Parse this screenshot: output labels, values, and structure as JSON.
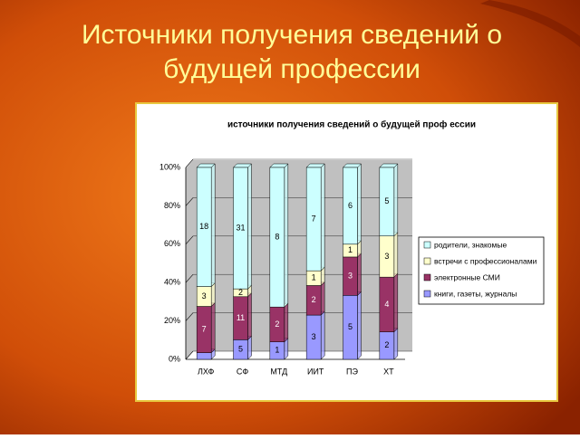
{
  "slide_title": "Источники получения сведений о будущей профессии",
  "chart_data": {
    "type": "stacked_percent_bar",
    "title": "источники получения сведений о будущей проф ессии",
    "categories": [
      "ЛХФ",
      "СФ",
      "МТД",
      "ИИТ",
      "ПЭ",
      "ХТ"
    ],
    "series": [
      {
        "name": "книги, газеты, журналы",
        "color": "#9999ff",
        "values": [
          1,
          5,
          1,
          3,
          5,
          2
        ],
        "value_labels": [
          null,
          "5",
          "1",
          "3",
          "5",
          "2"
        ]
      },
      {
        "name": "электронные СМИ",
        "color": "#993366",
        "values": [
          7,
          11,
          2,
          2,
          3,
          4
        ]
      },
      {
        "name": "встречи с профессионалами",
        "color": "#ffffcc",
        "values": [
          3,
          2,
          0,
          1,
          1,
          3
        ],
        "value_labels": [
          "3",
          "2",
          null,
          "1",
          "1",
          "3"
        ]
      },
      {
        "name": "родители, знакомые",
        "color": "#ccffff",
        "values": [
          18,
          31,
          8,
          7,
          6,
          5
        ]
      }
    ],
    "ylim": [
      0,
      100
    ],
    "yticks": [
      {
        "value": 0,
        "label": "0%"
      },
      {
        "value": 20,
        "label": "20%"
      },
      {
        "value": 40,
        "label": "40%"
      },
      {
        "value": 60,
        "label": "60%"
      },
      {
        "value": 80,
        "label": "80%"
      },
      {
        "value": 100,
        "label": "100%"
      }
    ],
    "legend": "right"
  }
}
